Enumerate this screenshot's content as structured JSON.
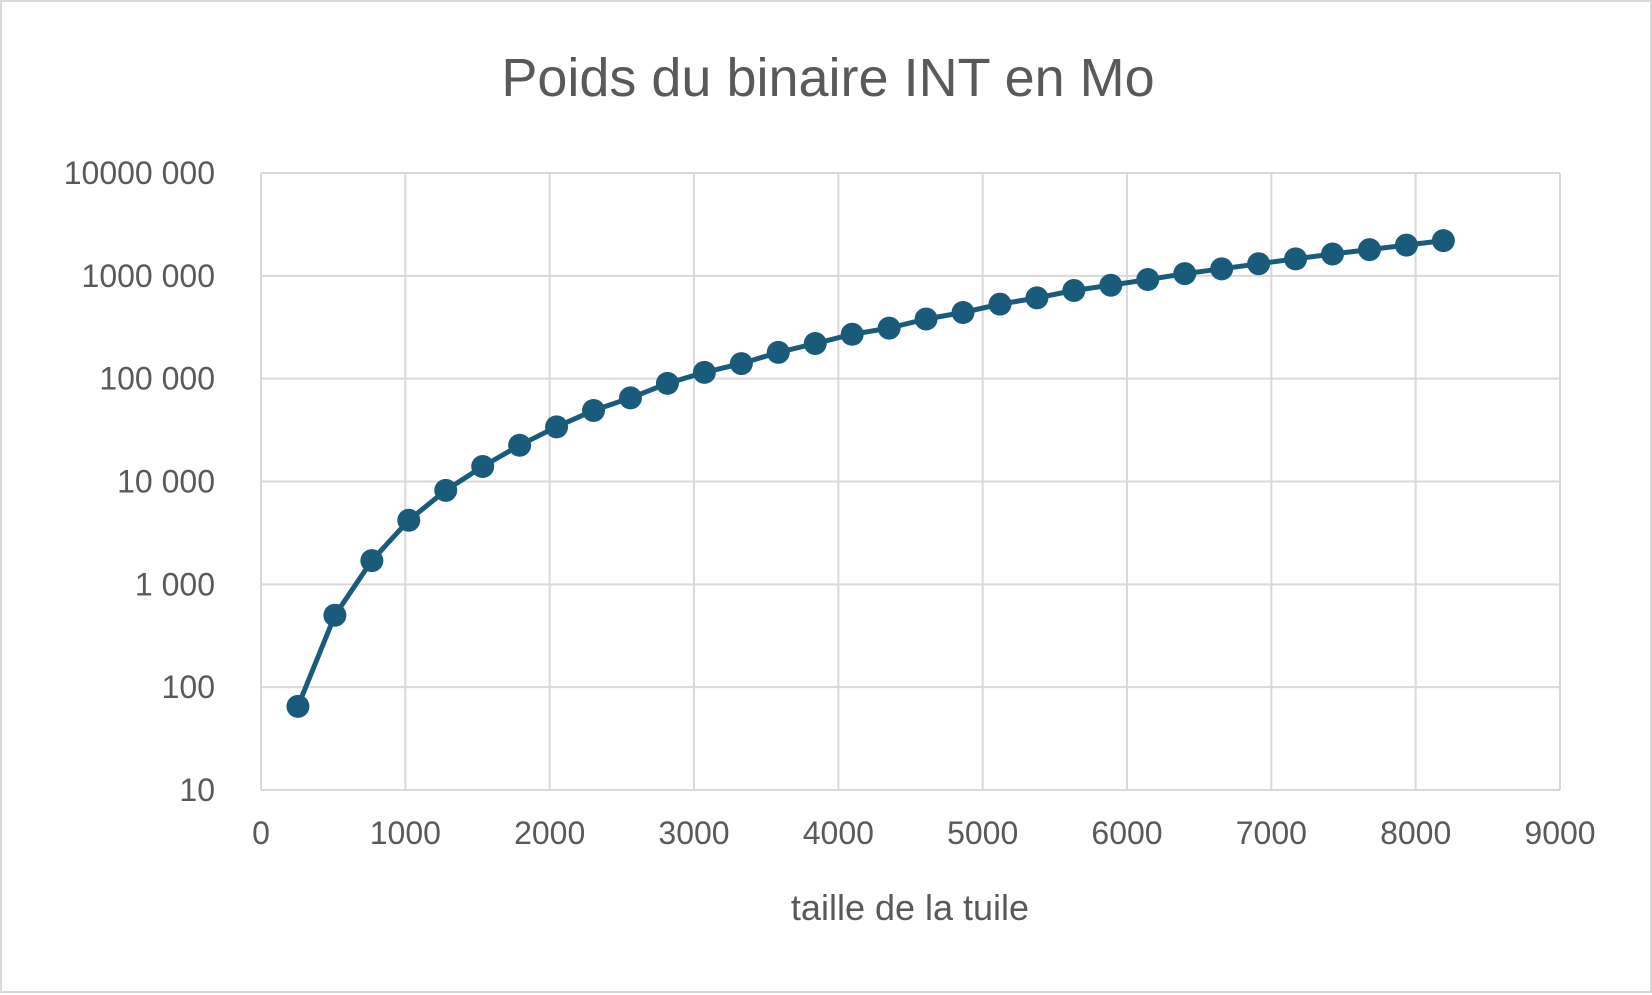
{
  "chart_data": {
    "type": "scatter",
    "title": "Poids du binaire  INT en Mo",
    "xlabel": "taille de la tuile",
    "ylabel": "",
    "y_scale": "log",
    "grid": true,
    "legend": "none",
    "xlim": [
      0,
      9000
    ],
    "ylim": [
      10,
      10000000
    ],
    "x_ticks": [
      0,
      1000,
      2000,
      3000,
      4000,
      5000,
      6000,
      7000,
      8000,
      9000
    ],
    "x_tick_labels": [
      "0",
      "1000",
      "2000",
      "3000",
      "4000",
      "5000",
      "6000",
      "7000",
      "8000",
      "9000"
    ],
    "y_ticks": [
      10,
      100,
      1000,
      10000,
      100000,
      1000000,
      10000000
    ],
    "y_tick_labels": [
      "10",
      "100",
      "1 000",
      "10 000",
      "100 000",
      "1000 000",
      "10000 000"
    ],
    "series_color": "#1a5a7a",
    "series": [
      {
        "x": [
          256,
          512,
          768,
          1024,
          1280,
          1536,
          1792,
          2048,
          2304,
          2560,
          2816,
          3072,
          3328,
          3584,
          3840,
          4096,
          4352,
          4608,
          4864,
          5120,
          5376,
          5632,
          5888,
          6144,
          6400,
          6656,
          6912,
          7168,
          7424,
          7680,
          7936,
          8192
        ],
        "y": [
          65,
          500,
          1700,
          4200,
          8200,
          14000,
          22500,
          34000,
          49000,
          65000,
          90000,
          115000,
          140000,
          180000,
          220000,
          270000,
          310000,
          380000,
          440000,
          530000,
          610000,
          720000,
          810000,
          920000,
          1050000,
          1170000,
          1310000,
          1460000,
          1630000,
          1800000,
          1990000,
          2200000
        ]
      }
    ]
  }
}
